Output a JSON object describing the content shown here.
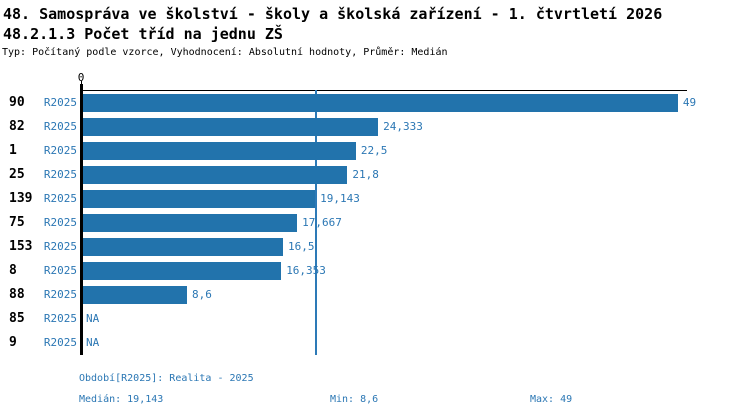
{
  "header": {
    "title_line1": "48. Samospráva ve školství - školy a školská zařízení - 1. čtvrtletí 2026",
    "title_line2": "48.2.1.3 Počet tříd na jednu ZŠ",
    "meta_line": "Typ: Počítaný podle vzorce, Vyhodnocení: Absolutní hodnoty, Průměr: Medián"
  },
  "colors": {
    "bar": "#2273ac",
    "label_blue": "#2b77b4",
    "median_line": "#2d7ab7",
    "axis": "#000000",
    "background": "#ffffff"
  },
  "chart_data": {
    "type": "bar",
    "orientation": "horizontal",
    "title": "48.2.1.3 Počet tříd na jednu ZŠ",
    "series_name": "R2025",
    "categories": [
      "90",
      "82",
      "1",
      "25",
      "139",
      "75",
      "153",
      "8",
      "88",
      "85",
      "9"
    ],
    "values": [
      49,
      24.333,
      22.5,
      21.8,
      19.143,
      17.667,
      16.5,
      16.353,
      8.6,
      null,
      null
    ],
    "value_labels": [
      "49",
      "24,333",
      "22,5",
      "21,8",
      "19,143",
      "17,667",
      "16,5",
      "16,353",
      "8,6",
      "NA",
      "NA"
    ],
    "na_label": "NA",
    "xlim": [
      0,
      49.75
    ],
    "x_tick_labels": [
      "0"
    ],
    "median": 19.143,
    "grid": false,
    "legend_position": "none",
    "xlabel": "",
    "ylabel": ""
  },
  "footer": {
    "period_label": "Období[R2025]: Realita - 2025",
    "median_label": "Medián: 19,143",
    "min_label": "Min: 8,6",
    "max_label": "Max: 49"
  }
}
